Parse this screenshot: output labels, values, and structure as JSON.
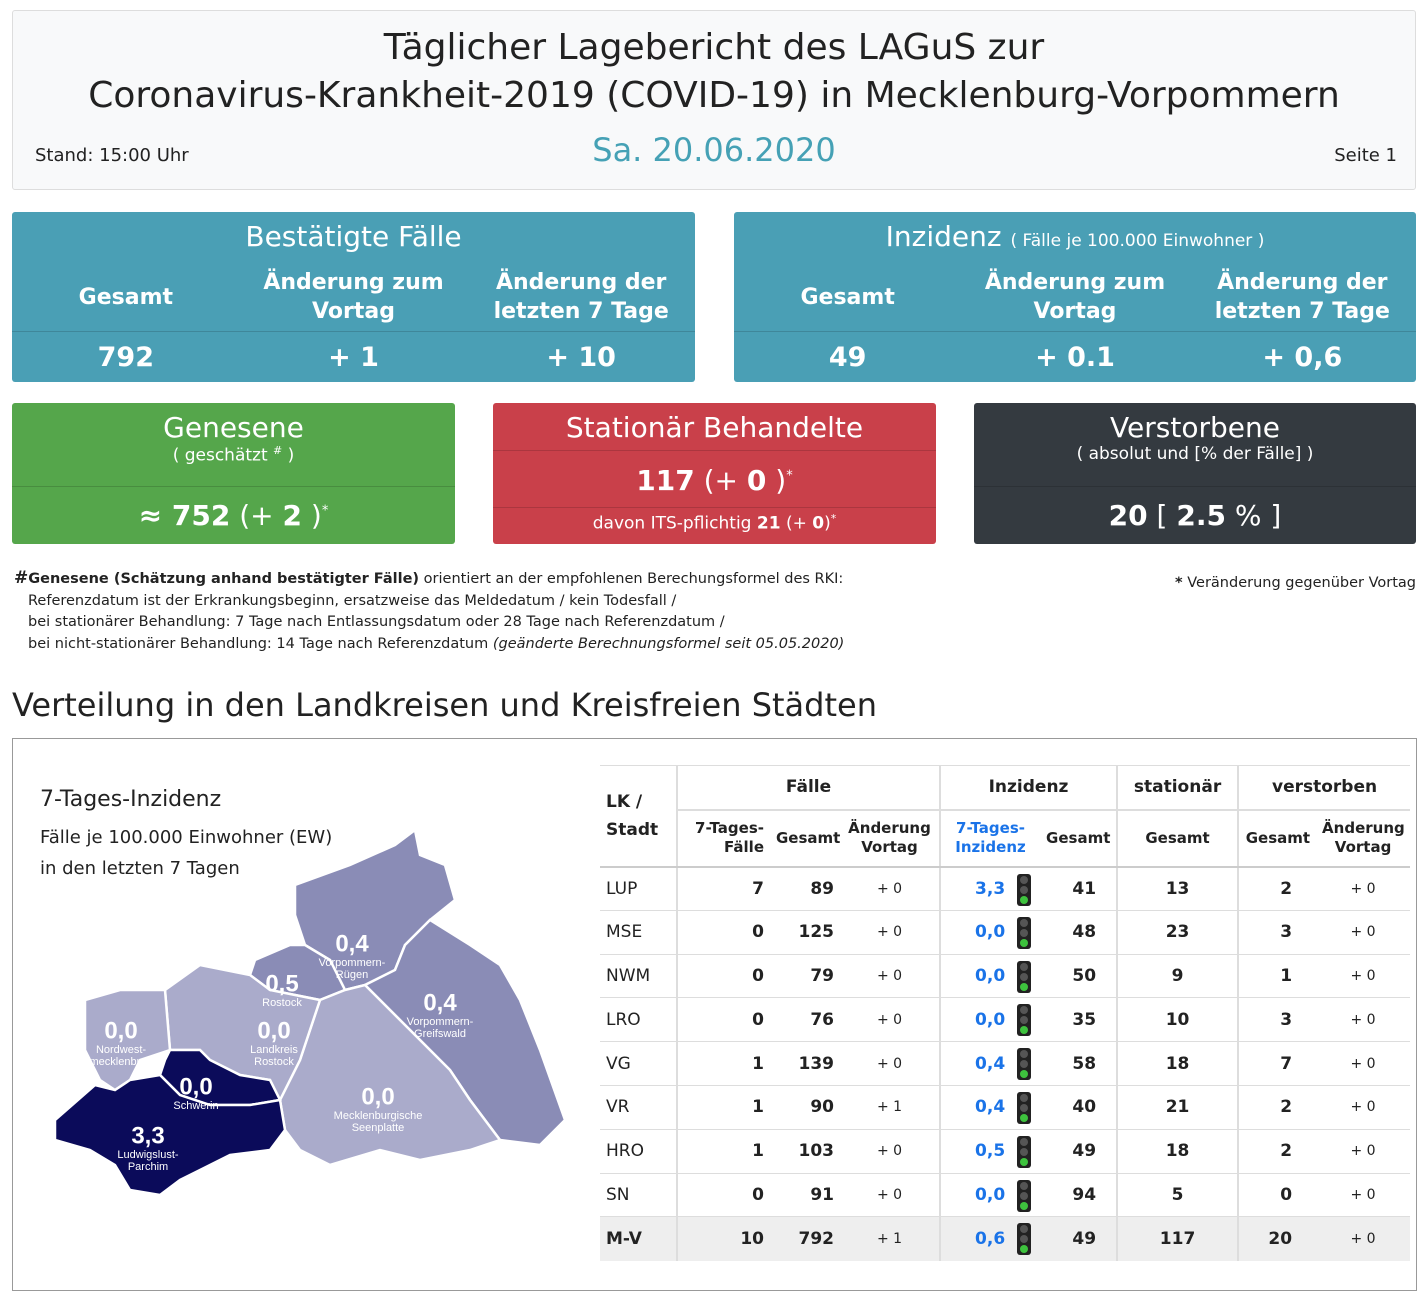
{
  "header": {
    "title_line1": "Täglicher Lagebericht des LAGuS zur",
    "title_line2": "Coronavirus-Krankheit-2019 (COVID-19) in Mecklenburg-Vorpommern",
    "stand": "Stand: 15:00 Uhr",
    "date": "Sa. 20.06.2020",
    "page": "Seite 1"
  },
  "cards": {
    "bestaetigte": {
      "title": "Bestätigte Fälle",
      "columns": [
        "Gesamt",
        "Änderung zum Vortag",
        "Änderung der letzten 7 Tage"
      ],
      "values": [
        "792",
        "+ 1",
        "+ 10"
      ]
    },
    "inzidenz": {
      "title": "Inzidenz",
      "subtitle": "( Fälle je 100.000 Einwohner )",
      "columns": [
        "Gesamt",
        "Änderung zum Vortag",
        "Änderung der letzten 7 Tage"
      ],
      "values": [
        "49",
        "+ 0.1",
        "+ 0,6"
      ]
    },
    "genesene": {
      "title": "Genesene",
      "subtitle": "( geschätzt",
      "subtitle_mark": "#",
      "subtitle_end": ")",
      "value": "≈ 752",
      "change_open": "(+",
      "change": "2",
      "change_close": ")",
      "mark": "*"
    },
    "stationaer": {
      "title": "Stationär Behandelte",
      "value": "117",
      "change_open": "(+",
      "change": "0",
      "change_close": ")",
      "mark": "*",
      "detail": "davon ITS-pflichtig",
      "its": "21",
      "its_change_open": "(+",
      "its_change": "0",
      "its_change_close": ")",
      "its_mark": "*"
    },
    "verstorbene": {
      "title": "Verstorbene",
      "subtitle": "( absolut und [% der Fälle] )",
      "value": "20",
      "pct_open": "[",
      "pct": "2.5",
      "pct_unit": "%",
      "pct_close": "]"
    }
  },
  "footnote": {
    "mark": "#",
    "bold": "Genesene (Schätzung anhand bestätigter Fälle)",
    "text": " orientiert an der empfohlenen Berechungsformel des RKI:",
    "lines": [
      "Referenzdatum ist der Erkrankungsbeginn, ersatzweise das Meldedatum / kein Todesfall /",
      "bei stationärer Behandlung: 7 Tage nach Entlassungsdatum oder 28 Tage nach Referenzdatum /",
      "bei nicht-stationärer Behandlung: 14 Tage nach Referenzdatum"
    ],
    "italic": "(geänderte Berechnungsformel seit 05.05.2020)",
    "right_mark": "*",
    "right": "Veränderung gegenüber Vortag"
  },
  "section_title": "Verteilung in den Landkreisen und Kreisfreien Städten",
  "map": {
    "title": "7-Tages-Inzidenz",
    "lines": [
      "Fälle je 100.000 Einwohner (EW)",
      "in den letzten 7 Tagen"
    ],
    "regions": [
      {
        "value": "0,4",
        "name_lines": [
          "Vorpommern-",
          "Rügen"
        ]
      },
      {
        "value": "0,5",
        "name_lines": [
          "Rostock"
        ]
      },
      {
        "value": "0,4",
        "name_lines": [
          "Vorpommern-",
          "Greifswald"
        ]
      },
      {
        "value": "0,0",
        "name_lines": [
          "Nordwest-",
          "mecklenburg"
        ]
      },
      {
        "value": "0,0",
        "name_lines": [
          "Landkreis",
          "Rostock"
        ]
      },
      {
        "value": "0,0",
        "name_lines": [
          "Schwerin"
        ]
      },
      {
        "value": "0,0",
        "name_lines": [
          "Mecklenburgische",
          "Seenplatte"
        ]
      },
      {
        "value": "3,3",
        "name_lines": [
          "Ludwigslust-",
          "Parchim"
        ]
      }
    ]
  },
  "table": {
    "group_headers": [
      "LK / Stadt",
      "Fälle",
      "Inzidenz",
      "stationär",
      "verstorben"
    ],
    "sub_headers": [
      "7-Tages-Fälle",
      "Gesamt",
      "Änderung Vortag",
      "7-Tages-Inzidenz",
      "Gesamt",
      "Gesamt",
      "Gesamt",
      "Änderung Vortag"
    ],
    "rows": [
      [
        "LUP",
        "7",
        "89",
        "+ 0",
        "3,3",
        "41",
        "13",
        "2",
        "+ 0"
      ],
      [
        "MSE",
        "0",
        "125",
        "+ 0",
        "0,0",
        "48",
        "23",
        "3",
        "+ 0"
      ],
      [
        "NWM",
        "0",
        "79",
        "+ 0",
        "0,0",
        "50",
        "9",
        "1",
        "+ 0"
      ],
      [
        "LRO",
        "0",
        "76",
        "+ 0",
        "0,0",
        "35",
        "10",
        "3",
        "+ 0"
      ],
      [
        "VG",
        "1",
        "139",
        "+ 0",
        "0,4",
        "58",
        "18",
        "7",
        "+ 0"
      ],
      [
        "VR",
        "1",
        "90",
        "+ 1",
        "0,4",
        "40",
        "21",
        "2",
        "+ 0"
      ],
      [
        "HRO",
        "1",
        "103",
        "+ 0",
        "0,5",
        "49",
        "18",
        "2",
        "+ 0"
      ],
      [
        "SN",
        "0",
        "91",
        "+ 0",
        "0,0",
        "94",
        "5",
        "0",
        "+ 0"
      ],
      [
        "M-V",
        "10",
        "792",
        "+ 1",
        "0,6",
        "49",
        "117",
        "20",
        "+ 0"
      ]
    ]
  }
}
